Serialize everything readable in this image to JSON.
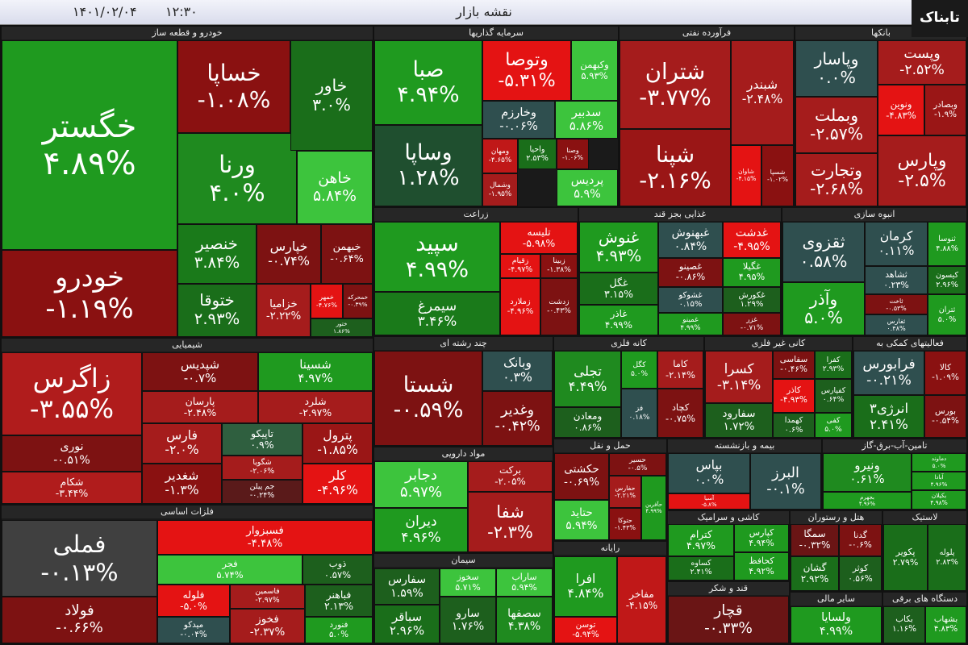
{
  "header": {
    "title": "نقشه بازار",
    "time": "۱۲:۳۰",
    "date": "۱۴۰۱/۰۲/۰۴",
    "logo": "تابناک"
  },
  "sectors": [
    {
      "name": "خودرو و قطعه ساز",
      "tiles": [
        {
          "name": "خگستر",
          "change": "۴.۸۹%",
          "color": "#1f9a1f"
        },
        {
          "name": "خودرو",
          "change": "-۱.۱۹%",
          "color": "#8a1111"
        },
        {
          "name": "خساپا",
          "change": "-۱.۰۸%",
          "color": "#8a1111"
        },
        {
          "name": "ورنا",
          "change": "۴.۰%",
          "color": "#1f8a1f"
        },
        {
          "name": "خاور",
          "change": "۳.۰%",
          "color": "#1a6e1a"
        },
        {
          "name": "خاهن",
          "change": "۵.۸۴%",
          "color": "#3dc43d"
        },
        {
          "name": "خنصیر",
          "change": "۳.۸۴%",
          "color": "#1a7a1a"
        },
        {
          "name": "ختوقا",
          "change": "۲.۹۳%",
          "color": "#1a6e1a"
        },
        {
          "name": "خپارس",
          "change": "-۰.۷۴%",
          "color": "#7d1212"
        },
        {
          "name": "خبهمن",
          "change": "-۰.۶۴%",
          "color": "#7d1212"
        },
        {
          "name": "خزامیا",
          "change": "-۲.۲۲%",
          "color": "#a51c1c"
        },
        {
          "name": "خمهر",
          "change": "-۴.۷۶%",
          "color": "#e41313"
        },
        {
          "name": "خمحرکه",
          "change": "-۰.۳۹%",
          "color": "#7d1212"
        },
        {
          "name": "ختور",
          "change": "۱.۸۶%",
          "color": "#1d5f1d"
        }
      ]
    },
    {
      "name": "سرمایه گذاریها",
      "tiles": [
        {
          "name": "صبا",
          "change": "۴.۹۴%",
          "color": "#1f9a1f"
        },
        {
          "name": "وساپا",
          "change": "۱.۲۸%",
          "color": "#1f4f2f"
        },
        {
          "name": "وتوصا",
          "change": "-۵.۳۱%",
          "color": "#e41313"
        },
        {
          "name": "وکبهمن",
          "change": "۵.۹۳%",
          "color": "#3dc43d"
        },
        {
          "name": "وخارزم",
          "change": "-۰.۰۶%",
          "color": "#2f4f4f"
        },
        {
          "name": "سدبیر",
          "change": "۵.۸۶%",
          "color": "#3dc43d"
        },
        {
          "name": "ومهان",
          "change": "-۴.۶۵%",
          "color": "#c01818"
        },
        {
          "name": "واحیا",
          "change": "۲.۵۳%",
          "color": "#1a6e1a"
        },
        {
          "name": "وصنا",
          "change": "-۱.۰۶%",
          "color": "#8a1111"
        },
        {
          "name": "وشمال",
          "change": "-۱.۹۵%",
          "color": "#a51c1c"
        },
        {
          "name": "پردیس",
          "change": "۵.۹%",
          "color": "#3dc43d"
        }
      ]
    },
    {
      "name": "فرآورده نفتی",
      "tiles": [
        {
          "name": "شتران",
          "change": "-۳.۷۷%",
          "color": "#a51c1c"
        },
        {
          "name": "شبندر",
          "change": "-۲.۴۸%",
          "color": "#a51c1c"
        },
        {
          "name": "شپنا",
          "change": "-۲.۱۶%",
          "color": "#9a1616"
        },
        {
          "name": "شاوان",
          "change": "-۴.۱۵%",
          "color": "#e41313"
        },
        {
          "name": "شسپا",
          "change": "-۱.۰۲%",
          "color": "#8a1111"
        }
      ]
    },
    {
      "name": "بانکها",
      "tiles": [
        {
          "name": "وپاسار",
          "change": "۰.۰%",
          "color": "#2f4f4f"
        },
        {
          "name": "وپست",
          "change": "-۲.۵۲%",
          "color": "#a51c1c"
        },
        {
          "name": "وبملت",
          "change": "-۲.۵۷%",
          "color": "#a51c1c"
        },
        {
          "name": "ونوین",
          "change": "-۴.۸۳%",
          "color": "#e41313"
        },
        {
          "name": "وبصادر",
          "change": "-۱.۹%",
          "color": "#9a1616"
        },
        {
          "name": "وتجارت",
          "change": "-۲.۶۸%",
          "color": "#a51c1c"
        },
        {
          "name": "وپارس",
          "change": "-۲.۵%",
          "color": "#a51c1c"
        }
      ]
    },
    {
      "name": "زراعت",
      "tiles": [
        {
          "name": "سپید",
          "change": "۴.۹۹%",
          "color": "#1f9a1f"
        },
        {
          "name": "سیمرغ",
          "change": "۳.۴۶%",
          "color": "#1a7a1a"
        },
        {
          "name": "تلیسه",
          "change": "-۵.۹۸%",
          "color": "#e41313"
        },
        {
          "name": "زقیام",
          "change": "-۴.۹۷%",
          "color": "#e41313"
        },
        {
          "name": "زبینا",
          "change": "-۱.۳۸%",
          "color": "#8a1111"
        },
        {
          "name": "زملارد",
          "change": "-۴.۹۶%",
          "color": "#e41313"
        },
        {
          "name": "زدشت",
          "change": "-۰.۴۳%",
          "color": "#7d1212"
        }
      ]
    },
    {
      "name": "غذایی بجز قند",
      "tiles": [
        {
          "name": "غنوش",
          "change": "۴.۹۳%",
          "color": "#1f9a1f"
        },
        {
          "name": "غگل",
          "change": "۳.۱۵%",
          "color": "#1a6e1a"
        },
        {
          "name": "غاذر",
          "change": "۴.۹۹%",
          "color": "#1f9a1f"
        },
        {
          "name": "غبهنوش",
          "change": "۰.۸۴%",
          "color": "#2f4f4f"
        },
        {
          "name": "غدشت",
          "change": "-۴.۹۵%",
          "color": "#e41313"
        },
        {
          "name": "غصینو",
          "change": "-۰.۸۶%",
          "color": "#7d1212"
        },
        {
          "name": "غگیلا",
          "change": "۴.۹۵%",
          "color": "#1f9a1f"
        },
        {
          "name": "غشوکو",
          "change": "۰.۱۵%",
          "color": "#2f4f4f"
        },
        {
          "name": "غکورش",
          "change": "۱.۲۹%",
          "color": "#1d5f1d"
        },
        {
          "name": "غمینو",
          "change": "۴.۹۹%",
          "color": "#1f9a1f"
        },
        {
          "name": "غزر",
          "change": "-۰.۷۱%",
          "color": "#7d1212"
        }
      ]
    },
    {
      "name": "انبوه سازی",
      "tiles": [
        {
          "name": "ثقزوی",
          "change": "۰.۵۸%",
          "color": "#2f4f4f"
        },
        {
          "name": "وآذر",
          "change": "۵.۰%",
          "color": "#1f9a1f"
        },
        {
          "name": "کرمان",
          "change": "۰.۱۱%",
          "color": "#2f4f4f"
        },
        {
          "name": "ثنوسا",
          "change": "۴.۸۸%",
          "color": "#1f9a1f"
        },
        {
          "name": "ثشاهد",
          "change": "۰.۲۳%",
          "color": "#2f4f4f"
        },
        {
          "name": "کیسون",
          "change": "۲.۹۶%",
          "color": "#1a6e1a"
        },
        {
          "name": "ثاخت",
          "change": "-۰.۵۳%",
          "color": "#7d1212"
        },
        {
          "name": "ثتران",
          "change": "۵.۰%",
          "color": "#1f9a1f"
        },
        {
          "name": "ثفارس",
          "change": "۰.۴۸%",
          "color": "#2f4f4f"
        }
      ]
    },
    {
      "name": "شیمیایی",
      "tiles": [
        {
          "name": "زاگرس",
          "change": "-۳.۵۵%",
          "color": "#b01c1c"
        },
        {
          "name": "نوری",
          "change": "-۰.۵۱%",
          "color": "#7d1212"
        },
        {
          "name": "شکام",
          "change": "-۳.۴۴%",
          "color": "#b01c1c"
        },
        {
          "name": "شپدیس",
          "change": "-۰.۷%",
          "color": "#7d1212"
        },
        {
          "name": "شسینا",
          "change": "۴.۹۷%",
          "color": "#1f9a1f"
        },
        {
          "name": "پارسان",
          "change": "-۲.۴۸%",
          "color": "#a51c1c"
        },
        {
          "name": "شلرد",
          "change": "-۲.۹۷%",
          "color": "#a51c1c"
        },
        {
          "name": "فارس",
          "change": "-۲.۰%",
          "color": "#a51c1c"
        },
        {
          "name": "شغدیر",
          "change": "-۱.۳%",
          "color": "#8a1111"
        },
        {
          "name": "تاپیکو",
          "change": "۰.۹%",
          "color": "#2f5f3f"
        },
        {
          "name": "پترول",
          "change": "-۱.۸۵%",
          "color": "#9a1616"
        },
        {
          "name": "شگویا",
          "change": "-۲.۰۶%",
          "color": "#a51c1c"
        },
        {
          "name": "جم پیلن",
          "change": "-۰.۲۴%",
          "color": "#5a1a1a"
        },
        {
          "name": "کلر",
          "change": "-۴.۹۶%",
          "color": "#e41313"
        }
      ]
    },
    {
      "name": "فلزات اساسی",
      "tiles": [
        {
          "name": "فملی",
          "change": "-۰.۱۳%",
          "color": "#404040"
        },
        {
          "name": "فولاد",
          "change": "-۰.۶۶%",
          "color": "#7d1212"
        },
        {
          "name": "فسبزوار",
          "change": "-۴.۴۸%",
          "color": "#e41313"
        },
        {
          "name": "فجر",
          "change": "۵.۷۴%",
          "color": "#3dc43d"
        },
        {
          "name": "ذوب",
          "change": "۰.۵۷%",
          "color": "#1d5f1d"
        },
        {
          "name": "فلوله",
          "change": "-۵.۰%",
          "color": "#e41313"
        },
        {
          "name": "فاسمین",
          "change": "-۲.۹۷%",
          "color": "#a51c1c"
        },
        {
          "name": "فباهنر",
          "change": "۲.۱۳%",
          "color": "#1d5f1d"
        },
        {
          "name": "میدکو",
          "change": "-۰.۰۴%",
          "color": "#2f4f4f"
        },
        {
          "name": "فخوز",
          "change": "-۲.۳۷%",
          "color": "#a51c1c"
        },
        {
          "name": "فنورد",
          "change": "۵.۰%",
          "color": "#1f9a1f"
        }
      ]
    },
    {
      "name": "چند رشته ای",
      "tiles": [
        {
          "name": "شستا",
          "change": "-۰.۵۹%",
          "color": "#7d1212"
        },
        {
          "name": "وبانک",
          "change": "۰.۳%",
          "color": "#2f4f4f"
        },
        {
          "name": "وغدیر",
          "change": "-۰.۴۲%",
          "color": "#7d1212"
        }
      ]
    },
    {
      "name": "کانه فلزی",
      "tiles": [
        {
          "name": "تجلی",
          "change": "۴.۴۹%",
          "color": "#1f8a1f"
        },
        {
          "name": "ومعادن",
          "change": "۰.۸۶%",
          "color": "#1d5f1d"
        },
        {
          "name": "کگل",
          "change": "۵.۰%",
          "color": "#1f9a1f"
        },
        {
          "name": "کاما",
          "change": "-۲.۱۴%",
          "color": "#a51c1c"
        },
        {
          "name": "فز",
          "change": "۰.۱۸%",
          "color": "#2f4f4f"
        },
        {
          "name": "کچاد",
          "change": "-۰.۷۵%",
          "color": "#7d1212"
        }
      ]
    },
    {
      "name": "کانی غیر فلزی",
      "tiles": [
        {
          "name": "کسرا",
          "change": "-۳.۱۴%",
          "color": "#a51c1c"
        },
        {
          "name": "سفارود",
          "change": "۱.۷۲%",
          "color": "#1d5f1d"
        },
        {
          "name": "سفاسی",
          "change": "-۰.۴۶%",
          "color": "#7d1212"
        },
        {
          "name": "کفرا",
          "change": "۲.۹۳%",
          "color": "#1a6e1a"
        },
        {
          "name": "کاذر",
          "change": "-۴.۹۳%",
          "color": "#e41313"
        },
        {
          "name": "کفپارس",
          "change": "۰.۶۴%",
          "color": "#1d5f1d"
        },
        {
          "name": "کهمدا",
          "change": "۰.۶%",
          "color": "#1d5f1d"
        },
        {
          "name": "کفی",
          "change": "۵.۰%",
          "color": "#1f9a1f"
        }
      ]
    },
    {
      "name": "فعالیتهای کمکی به",
      "tiles": [
        {
          "name": "فرابورس",
          "change": "-۰.۲۱%",
          "color": "#2f4f4f"
        },
        {
          "name": "کالا",
          "change": "-۱.۰۹%",
          "color": "#8a1111"
        },
        {
          "name": "انرژی۳",
          "change": "۲.۴۱%",
          "color": "#1a6e1a"
        },
        {
          "name": "بورس",
          "change": "-۰.۵۴%",
          "color": "#7d1212"
        }
      ]
    },
    {
      "name": "مواد دارویی",
      "tiles": [
        {
          "name": "دجابر",
          "change": "۵.۹۷%",
          "color": "#3dc43d"
        },
        {
          "name": "دیران",
          "change": "۴.۹۶%",
          "color": "#1f9a1f"
        },
        {
          "name": "برکت",
          "change": "-۲.۰۵%",
          "color": "#a51c1c"
        },
        {
          "name": "شفا",
          "change": "-۲.۳%",
          "color": "#a51c1c"
        }
      ]
    },
    {
      "name": "حمل و نقل",
      "tiles": [
        {
          "name": "حکشتی",
          "change": "-۰.۶۹%",
          "color": "#7d1212"
        },
        {
          "name": "حتاید",
          "change": "۵.۹۴%",
          "color": "#3dc43d"
        },
        {
          "name": "حسیر",
          "change": "-۰.۵%",
          "color": "#7d1212"
        },
        {
          "name": "حفارس",
          "change": "-۲.۲۱%",
          "color": "#a51c1c"
        },
        {
          "name": "حآفرین",
          "change": "۴.۹۹%",
          "color": "#1f9a1f"
        },
        {
          "name": "حتوکا",
          "change": "-۱.۴۳%",
          "color": "#8a1111"
        }
      ]
    },
    {
      "name": "بیمه و بازنشسته",
      "tiles": [
        {
          "name": "بپاس",
          "change": "۰.۰%",
          "color": "#2f4f4f"
        },
        {
          "name": "آسیا",
          "change": "-۵.۸%",
          "color": "#e41313"
        },
        {
          "name": "البرز",
          "change": "-۰.۱%",
          "color": "#2f4f4f"
        }
      ]
    },
    {
      "name": "تامین-آب-برق-گاز",
      "tiles": [
        {
          "name": "ونیرو",
          "change": "۰.۶۱%",
          "color": "#1f8a1f"
        },
        {
          "name": "بجهرم",
          "change": "۴.۹۶%",
          "color": "#1f9a1f"
        },
        {
          "name": "دماوند",
          "change": "۵.۰%",
          "color": "#1f9a1f"
        },
        {
          "name": "آبادا",
          "change": "۴.۹۶%",
          "color": "#1f9a1f"
        },
        {
          "name": "بکیلان",
          "change": "۴.۹۸%",
          "color": "#1f9a1f"
        }
      ]
    },
    {
      "name": "سیمان",
      "tiles": [
        {
          "name": "سفارس",
          "change": "۱.۵۹%",
          "color": "#1d5f1d"
        },
        {
          "name": "سباقر",
          "change": "۲.۹۶%",
          "color": "#1a6e1a"
        },
        {
          "name": "سخوز",
          "change": "۵.۷۱%",
          "color": "#3dc43d"
        },
        {
          "name": "ساراب",
          "change": "۵.۹۴%",
          "color": "#3dc43d"
        },
        {
          "name": "سارو",
          "change": "۱.۷۶%",
          "color": "#1d5f1d"
        },
        {
          "name": "سصفها",
          "change": "۴.۳۸%",
          "color": "#1f8a1f"
        }
      ]
    },
    {
      "name": "رایانه",
      "tiles": [
        {
          "name": "افرا",
          "change": "۴.۸۴%",
          "color": "#1f9a1f"
        },
        {
          "name": "توسن",
          "change": "-۵.۹۴%",
          "color": "#e41313"
        },
        {
          "name": "مفاخر",
          "change": "-۴.۱۵%",
          "color": "#c01818"
        }
      ]
    },
    {
      "name": "کاشی و سرامیک",
      "tiles": [
        {
          "name": "کترام",
          "change": "۴.۹۷%",
          "color": "#1f9a1f"
        },
        {
          "name": "کساوه",
          "change": "۲.۴۱%",
          "color": "#1a6e1a"
        },
        {
          "name": "کپارس",
          "change": "۴.۹۴%",
          "color": "#1f9a1f"
        },
        {
          "name": "کحافظ",
          "change": "۴.۹۲%",
          "color": "#1f9a1f"
        }
      ]
    },
    {
      "name": "قند و شکر",
      "tiles": [
        {
          "name": "قچار",
          "change": "-۰.۳۳%",
          "color": "#6a1515"
        }
      ]
    },
    {
      "name": "هتل و رستوران",
      "tiles": [
        {
          "name": "سمگا",
          "change": "-۰.۳۲%",
          "color": "#6a1515"
        },
        {
          "name": "گدنا",
          "change": "-۰.۶%",
          "color": "#7d1212"
        },
        {
          "name": "گشان",
          "change": "۲.۹۲%",
          "color": "#1a6e1a"
        },
        {
          "name": "کوثر",
          "change": "۰.۵۶%",
          "color": "#1d5f1d"
        }
      ]
    },
    {
      "name": "لاستیک",
      "tiles": [
        {
          "name": "پکویر",
          "change": "۲.۷۹%",
          "color": "#1a6e1a"
        },
        {
          "name": "پلوله",
          "change": "۲.۸۳%",
          "color": "#1a6e1a"
        }
      ]
    },
    {
      "name": "سایر مالی",
      "tiles": [
        {
          "name": "ولسایا",
          "change": "۴.۹۹%",
          "color": "#1f9a1f"
        }
      ]
    },
    {
      "name": "دستگاه های برقی",
      "tiles": [
        {
          "name": "بکاب",
          "change": "۱.۱۶%",
          "color": "#1d5f1d"
        },
        {
          "name": "بشهاب",
          "change": "۴.۸۳%",
          "color": "#1f9a1f"
        }
      ]
    }
  ]
}
